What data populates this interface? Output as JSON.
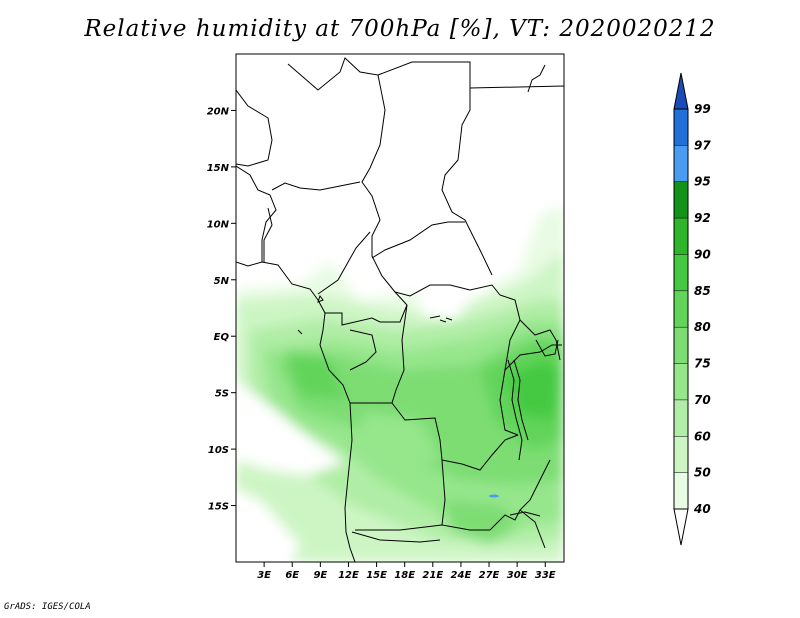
{
  "title": "Relative humidity at 700hPa [%], VT: 2020020212",
  "credit": "GrADS: IGES/COLA",
  "map": {
    "lon_range": [
      0,
      35
    ],
    "lat_range": [
      -20,
      25
    ],
    "lat_ticks": [
      "20N",
      "15N",
      "10N",
      "5N",
      "EQ",
      "5S",
      "10S",
      "15S"
    ],
    "lon_ticks": [
      "3E",
      "6E",
      "9E",
      "12E",
      "15E",
      "18E",
      "21E",
      "24E",
      "27E",
      "30E",
      "33E"
    ]
  },
  "colorbar": {
    "levels": [
      "40",
      "50",
      "60",
      "70",
      "75",
      "80",
      "85",
      "90",
      "92",
      "95",
      "97",
      "99"
    ],
    "colors": [
      "#ffffff",
      "#e8fbe3",
      "#cdf5c4",
      "#b0eda6",
      "#96e68c",
      "#7ddd73",
      "#62d45a",
      "#45c942",
      "#2db52c",
      "#14931a",
      "#4a9cf0",
      "#2070d8",
      "#1a4bb8"
    ]
  }
}
